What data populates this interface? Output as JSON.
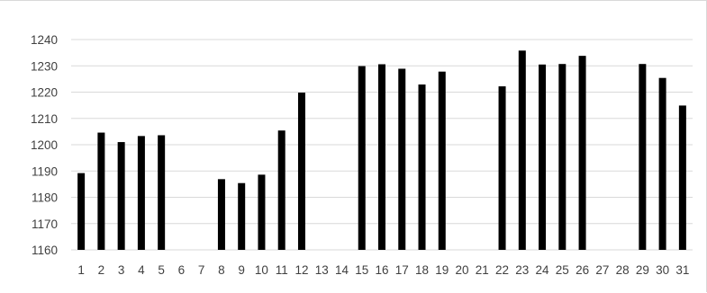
{
  "chart_data": {
    "type": "bar",
    "title": "",
    "xlabel": "",
    "ylabel": "",
    "categories": [
      "1",
      "2",
      "3",
      "4",
      "5",
      "6",
      "7",
      "8",
      "9",
      "10",
      "11",
      "12",
      "13",
      "14",
      "15",
      "16",
      "17",
      "18",
      "19",
      "20",
      "21",
      "22",
      "23",
      "24",
      "25",
      "26",
      "27",
      "28",
      "29",
      "30",
      "31"
    ],
    "values": [
      1189.2,
      1204.6,
      1201.0,
      1203.3,
      1203.6,
      null,
      null,
      1186.9,
      1185.4,
      1188.6,
      1205.4,
      1219.8,
      null,
      null,
      1229.9,
      1230.6,
      1228.9,
      1222.9,
      1227.8,
      null,
      null,
      1222.2,
      1235.8,
      1230.5,
      1230.7,
      1233.8,
      null,
      null,
      1230.7,
      1225.4,
      1214.9
    ],
    "ylim": [
      1160,
      1240
    ],
    "yticks": [
      1160,
      1170,
      1180,
      1190,
      1200,
      1210,
      1220,
      1230,
      1240
    ],
    "grid": true,
    "legend": "none",
    "colors": {
      "bar": "#000000",
      "grid": "#d9d9d9",
      "text": "#404040"
    }
  }
}
